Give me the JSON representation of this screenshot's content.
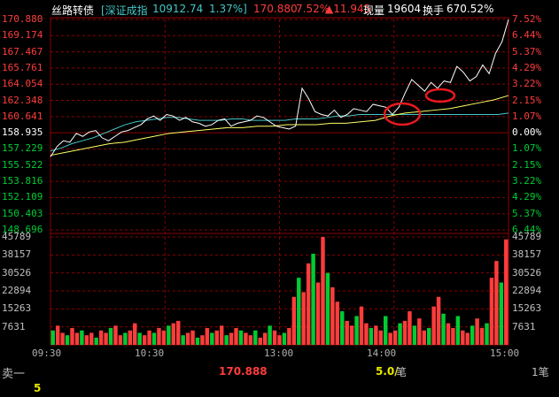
{
  "header": {
    "stock_name": "丝路转债",
    "index_name": "[深证成指",
    "index_value": "10912.74",
    "index_change": "1.37%]",
    "price": "170.880",
    "price_change_pct": "7.52%",
    "price_change": "▲11.945",
    "volume_label": "现量",
    "volume_value": "19604",
    "turnover_label": "换手",
    "turnover_value": "670.52%"
  },
  "colors": {
    "up": "#ff3c3c",
    "down": "#00cc33",
    "price_line": "#ffffff",
    "avg_line": "#ffff66",
    "index_line": "#44c8c8",
    "grid": "#8b0000",
    "annotation": "#e8191e"
  },
  "axes": {
    "price_ticks_left": [
      "170.880",
      "169.174",
      "167.467",
      "165.761",
      "164.054",
      "162.348",
      "160.641",
      "158.935",
      "157.229",
      "155.522",
      "153.816",
      "152.109",
      "150.403",
      "148.696"
    ],
    "pct_ticks_right": [
      "7.52%",
      "6.44%",
      "5.37%",
      "4.29%",
      "3.22%",
      "2.15%",
      "1.07%",
      "0.00%",
      "1.07%",
      "2.15%",
      "3.22%",
      "4.29%",
      "5.37%",
      "6.44%"
    ],
    "volume_ticks_left": [
      "45789",
      "38157",
      "30526",
      "22894",
      "15263",
      "7631"
    ],
    "volume_ticks_right": [
      "45789",
      "38157",
      "30526",
      "22894",
      "15263",
      "7631"
    ],
    "time_ticks": [
      "09:30",
      "10:30",
      "13:00",
      "14:00",
      "15:00"
    ]
  },
  "chart_data": {
    "type": "line",
    "base_price": 158.935,
    "series": [
      {
        "values_pct": [
          -1.9,
          -1.2,
          -0.8,
          -0.9,
          -0.3,
          -0.5,
          -0.2,
          -0.1,
          -0.6,
          -0.8,
          -0.5,
          -0.2,
          -0.1,
          0.1,
          0.3,
          0.7,
          0.9,
          0.6,
          1.0,
          0.9,
          0.6,
          0.8,
          0.5,
          0.4,
          0.2,
          0.3,
          0.6,
          0.7,
          0.2,
          0.4,
          0.5,
          0.6,
          0.9,
          0.8,
          0.5,
          0.2,
          0.1,
          0.0,
          0.2,
          2.8,
          2.1,
          1.2,
          1.0,
          0.9,
          1.3,
          0.8,
          1.0,
          1.4,
          1.3,
          1.2,
          1.7,
          1.6,
          1.5,
          1.0,
          1.5,
          2.5,
          3.4,
          3.0,
          2.6,
          3.2,
          2.8,
          3.3,
          3.2,
          4.3,
          3.9,
          3.3,
          3.6,
          4.4,
          3.8,
          5.2,
          6.0,
          7.52
        ]
      },
      {
        "values_pct": [
          -1.5,
          -1.3,
          -1.0,
          -0.8,
          -0.6,
          -0.3,
          0.0,
          0.3,
          0.5,
          0.6,
          0.7,
          0.8,
          0.8,
          0.7,
          0.6,
          0.6,
          0.6,
          0.7,
          0.7,
          0.6,
          0.6,
          0.6,
          0.6,
          0.7,
          0.7,
          0.7,
          0.8,
          0.9,
          0.9,
          1.0,
          1.0,
          1.0,
          1.0,
          1.0,
          1.0,
          1.0,
          1.0,
          1.0,
          1.0,
          1.0,
          1.0,
          1.0,
          1.0,
          1.1
        ]
      },
      {
        "values_pct": [
          -1.8,
          -1.6,
          -1.4,
          -1.2,
          -1.0,
          -0.9,
          -0.7,
          -0.5,
          -0.3,
          -0.2,
          -0.1,
          0.0,
          0.1,
          0.1,
          0.2,
          0.2,
          0.3,
          0.3,
          0.3,
          0.4,
          0.4,
          0.5,
          0.6,
          0.9,
          1.1,
          1.2,
          1.3,
          1.4,
          1.6,
          1.8,
          2.0,
          2.3
        ]
      }
    ],
    "volumes": [
      6,
      8,
      5,
      4,
      7,
      5,
      6,
      4,
      5,
      3,
      6,
      5,
      7,
      8,
      4,
      5,
      6,
      9,
      5,
      4,
      6,
      5,
      7,
      6,
      8,
      9,
      10,
      4,
      5,
      6,
      3,
      4,
      7,
      5,
      6,
      8,
      4,
      5,
      7,
      6,
      5,
      4,
      6,
      3,
      5,
      8,
      6,
      4,
      5,
      7,
      20,
      28,
      22,
      34,
      38,
      26,
      45,
      30,
      24,
      18,
      14,
      10,
      8,
      12,
      16,
      9,
      7,
      8,
      6,
      12,
      5,
      6,
      9,
      10,
      14,
      8,
      11,
      6,
      7,
      16,
      20,
      13,
      9,
      7,
      12,
      6,
      5,
      8,
      11,
      7,
      9,
      28,
      35,
      26,
      44
    ]
  },
  "footer": {
    "side_label": "卖一",
    "price": "170.888",
    "qty": "5.0/",
    "qty_unit": "笔",
    "count": "1笔",
    "sub_value": "5"
  }
}
